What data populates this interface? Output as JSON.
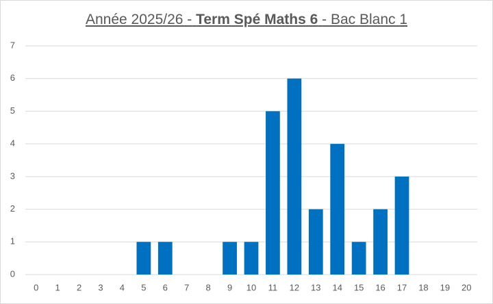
{
  "chart_data": {
    "type": "bar",
    "title": [
      "Année 2025/26 -",
      "Term Spé Maths 6",
      "- Bac Blanc 1"
    ],
    "categories": [
      0,
      1,
      2,
      3,
      4,
      5,
      6,
      7,
      8,
      9,
      10,
      11,
      12,
      13,
      14,
      15,
      16,
      17,
      18,
      19,
      20
    ],
    "values": [
      0,
      0,
      0,
      0,
      0,
      1,
      1,
      0,
      0,
      1,
      1,
      5,
      6,
      2,
      4,
      1,
      2,
      3,
      0,
      0,
      0
    ],
    "color": "#0070c0",
    "ylim": [
      0,
      7
    ],
    "yticks": [
      0,
      1,
      2,
      3,
      4,
      5,
      6,
      7
    ],
    "grid": true
  }
}
